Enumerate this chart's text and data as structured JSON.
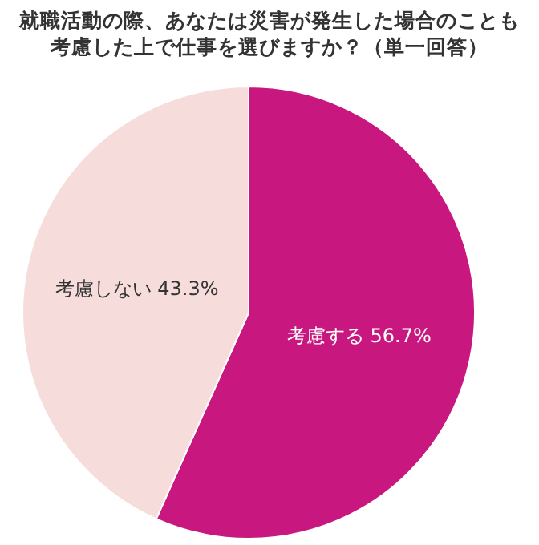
{
  "chart_data": {
    "type": "pie",
    "title": "就職活動の際、あなたは災害が発生した場合のことも考慮した上で仕事を選びますか？（単一回答）",
    "categories": [
      "考慮する",
      "考慮しない"
    ],
    "values": [
      56.7,
      43.3
    ],
    "value_labels": [
      "56.7%",
      "43.3%"
    ],
    "colors": [
      "#c8177f",
      "#f7dcdc"
    ],
    "legend": false
  }
}
